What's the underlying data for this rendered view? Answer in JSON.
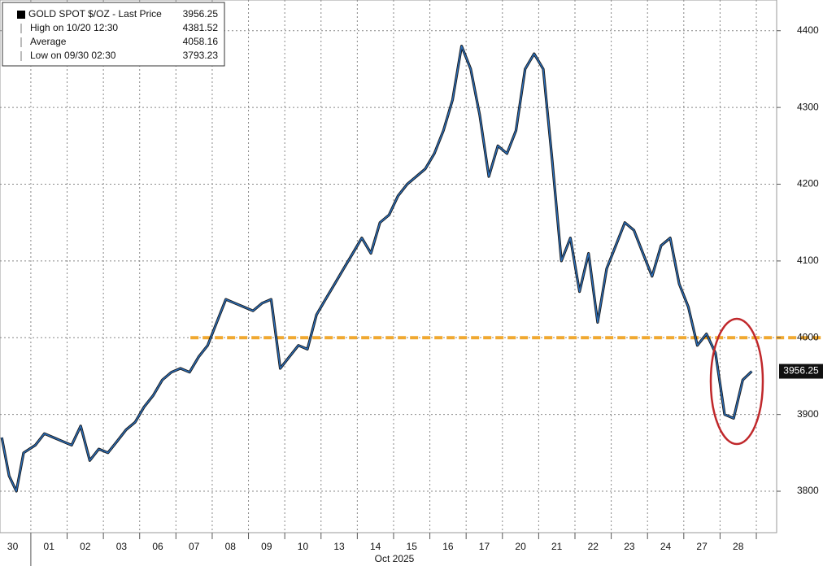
{
  "chart_data": {
    "type": "line",
    "legend": [
      {
        "label": "GOLD SPOT $/OZ - Last Price",
        "value": 3956.25
      },
      {
        "label": "High on 10/20 12:30",
        "value": 4381.52
      },
      {
        "label": "Average",
        "value": 4058.16
      },
      {
        "label": "Low on 09/30 02:30",
        "value": 3793.23
      }
    ],
    "x_axis_title": "Oct 2025",
    "xlim": [
      0.15,
      21.56
    ],
    "xticks": [
      {
        "value": 0.5,
        "label": "30"
      },
      {
        "value": 1.5,
        "label": "01"
      },
      {
        "value": 2.5,
        "label": "02"
      },
      {
        "value": 3.5,
        "label": "03"
      },
      {
        "value": 4.5,
        "label": "06"
      },
      {
        "value": 5.5,
        "label": "07"
      },
      {
        "value": 6.5,
        "label": "08"
      },
      {
        "value": 7.5,
        "label": "09"
      },
      {
        "value": 8.5,
        "label": "10"
      },
      {
        "value": 9.5,
        "label": "13"
      },
      {
        "value": 10.5,
        "label": "14"
      },
      {
        "value": 11.5,
        "label": "15"
      },
      {
        "value": 12.5,
        "label": "16"
      },
      {
        "value": 13.5,
        "label": "17"
      },
      {
        "value": 14.5,
        "label": "20"
      },
      {
        "value": 15.5,
        "label": "21"
      },
      {
        "value": 16.5,
        "label": "22"
      },
      {
        "value": 17.5,
        "label": "23"
      },
      {
        "value": 18.5,
        "label": "24"
      },
      {
        "value": 19.5,
        "label": "27"
      },
      {
        "value": 20.5,
        "label": "28"
      }
    ],
    "xgrid": [
      1,
      2,
      3,
      4,
      5,
      6,
      7,
      8,
      9,
      10,
      11,
      12,
      13,
      14,
      15,
      16,
      17,
      18,
      19,
      20,
      21
    ],
    "ylim": [
      3746,
      4440
    ],
    "yticks": [
      3800,
      3900,
      4000,
      4100,
      4200,
      4300,
      4400
    ],
    "grid": true,
    "last_price": 3956.25,
    "reference_line": {
      "value": 4000,
      "x_start": 5.4,
      "color": "#f0a830"
    },
    "x": [
      0.2,
      0.4,
      0.6,
      0.8,
      1.125,
      1.375,
      1.625,
      1.875,
      2.125,
      2.375,
      2.625,
      2.875,
      3.125,
      3.375,
      3.625,
      3.875,
      4.125,
      4.375,
      4.625,
      4.875,
      5.125,
      5.375,
      5.625,
      5.875,
      6.125,
      6.375,
      6.625,
      6.875,
      7.125,
      7.375,
      7.625,
      7.875,
      8.125,
      8.375,
      8.625,
      8.875,
      9.125,
      9.375,
      9.625,
      9.875,
      10.125,
      10.375,
      10.625,
      10.875,
      11.125,
      11.375,
      11.625,
      11.875,
      12.125,
      12.375,
      12.625,
      12.875,
      13.125,
      13.375,
      13.625,
      13.875,
      14.125,
      14.375,
      14.625,
      14.875,
      15.125,
      15.375,
      15.625,
      15.875,
      16.125,
      16.375,
      16.625,
      16.875,
      17.125,
      17.375,
      17.625,
      17.875,
      18.125,
      18.375,
      18.625,
      18.875,
      19.125,
      19.375,
      19.625,
      19.875,
      20.125,
      20.375,
      20.625,
      20.875
    ],
    "series": [
      {
        "name": "GOLD SPOT $/OZ - Last Price",
        "color": "#2a6fbd",
        "values": [
          3870,
          3820,
          3800,
          3850,
          3860,
          3875,
          3870,
          3865,
          3860,
          3885,
          3840,
          3855,
          3850,
          3865,
          3880,
          3890,
          3910,
          3925,
          3945,
          3955,
          3960,
          3955,
          3975,
          3990,
          4020,
          4050,
          4045,
          4040,
          4035,
          4045,
          4050,
          3960,
          3975,
          3990,
          3985,
          4030,
          4050,
          4070,
          4090,
          4110,
          4130,
          4110,
          4150,
          4160,
          4185,
          4200,
          4210,
          4220,
          4240,
          4270,
          4310,
          4380,
          4350,
          4290,
          4210,
          4250,
          4240,
          4270,
          4350,
          4370,
          4350,
          4230,
          4100,
          4130,
          4060,
          4110,
          4020,
          4090,
          4120,
          4150,
          4140,
          4110,
          4080,
          4120,
          4130,
          4070,
          4040,
          3990,
          4005,
          3980,
          3900,
          3895,
          3945,
          3956.25
        ]
      }
    ]
  }
}
